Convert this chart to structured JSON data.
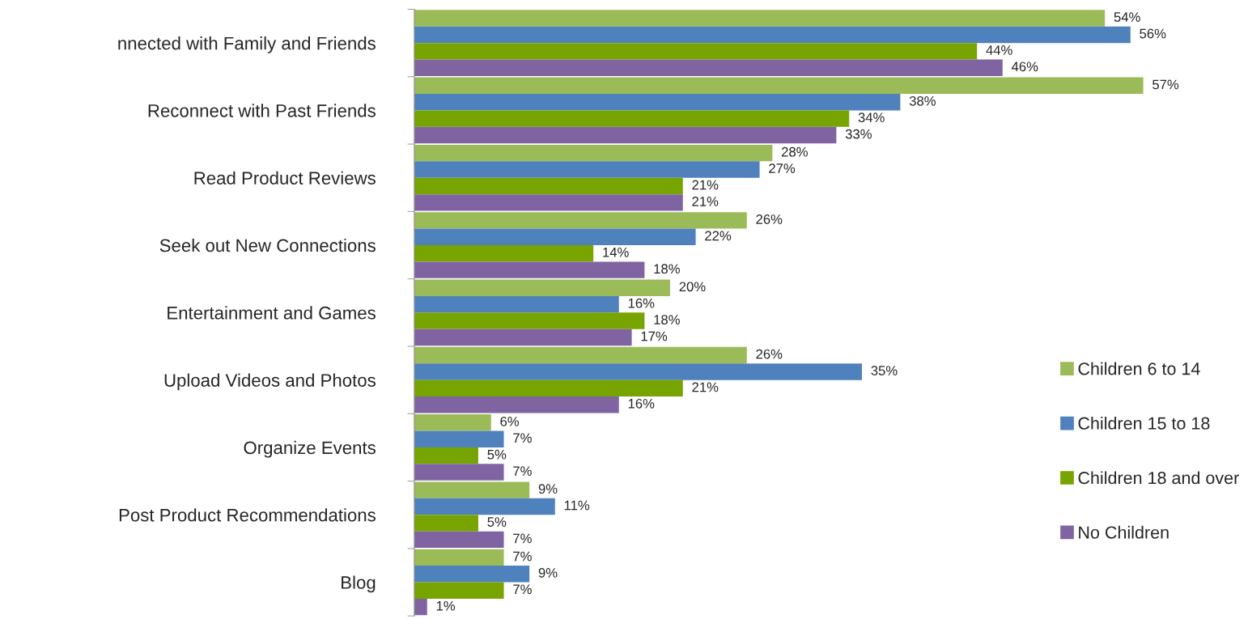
{
  "chart_data": {
    "type": "bar",
    "orientation": "horizontal",
    "categories": [
      "nnected with Family and Friends",
      "Reconnect with Past Friends",
      "Read Product Reviews",
      "Seek out New Connections",
      "Entertainment and Games",
      "Upload Videos and Photos",
      "Organize Events",
      "Post Product Recommendations",
      "Blog"
    ],
    "series": [
      {
        "name": "Children 6 to 14",
        "color": "#9bbb59",
        "values": [
          54,
          57,
          28,
          26,
          20,
          26,
          6,
          9,
          7
        ],
        "value_labels": [
          "54%",
          "57%",
          "28%",
          "26%",
          "20%",
          "26%",
          "6%",
          "9%",
          "7%"
        ]
      },
      {
        "name": "Children 15 to 18",
        "color": "#4f81bd",
        "values": [
          56,
          38,
          27,
          22,
          16,
          35,
          7,
          11,
          9
        ],
        "value_labels": [
          "56%",
          "38%",
          "27%",
          "22%",
          "16%",
          "35%",
          "7%",
          "11%",
          "9%"
        ]
      },
      {
        "name": "Children 18 and over",
        "color": "#77a400",
        "values": [
          44,
          34,
          21,
          14,
          18,
          21,
          5,
          5,
          7
        ],
        "value_labels": [
          "44%",
          "34%",
          "21%",
          "14%",
          "18%",
          "21%",
          "5%",
          "5%",
          "7%"
        ]
      },
      {
        "name": "No Children",
        "color": "#8064a2",
        "values": [
          46,
          33,
          21,
          18,
          17,
          16,
          7,
          7,
          1
        ],
        "value_labels": [
          "46%",
          "33%",
          "21%",
          "18%",
          "17%",
          "16%",
          "7%",
          "7%",
          "1%"
        ]
      }
    ],
    "legend": "right",
    "grid": false
  }
}
